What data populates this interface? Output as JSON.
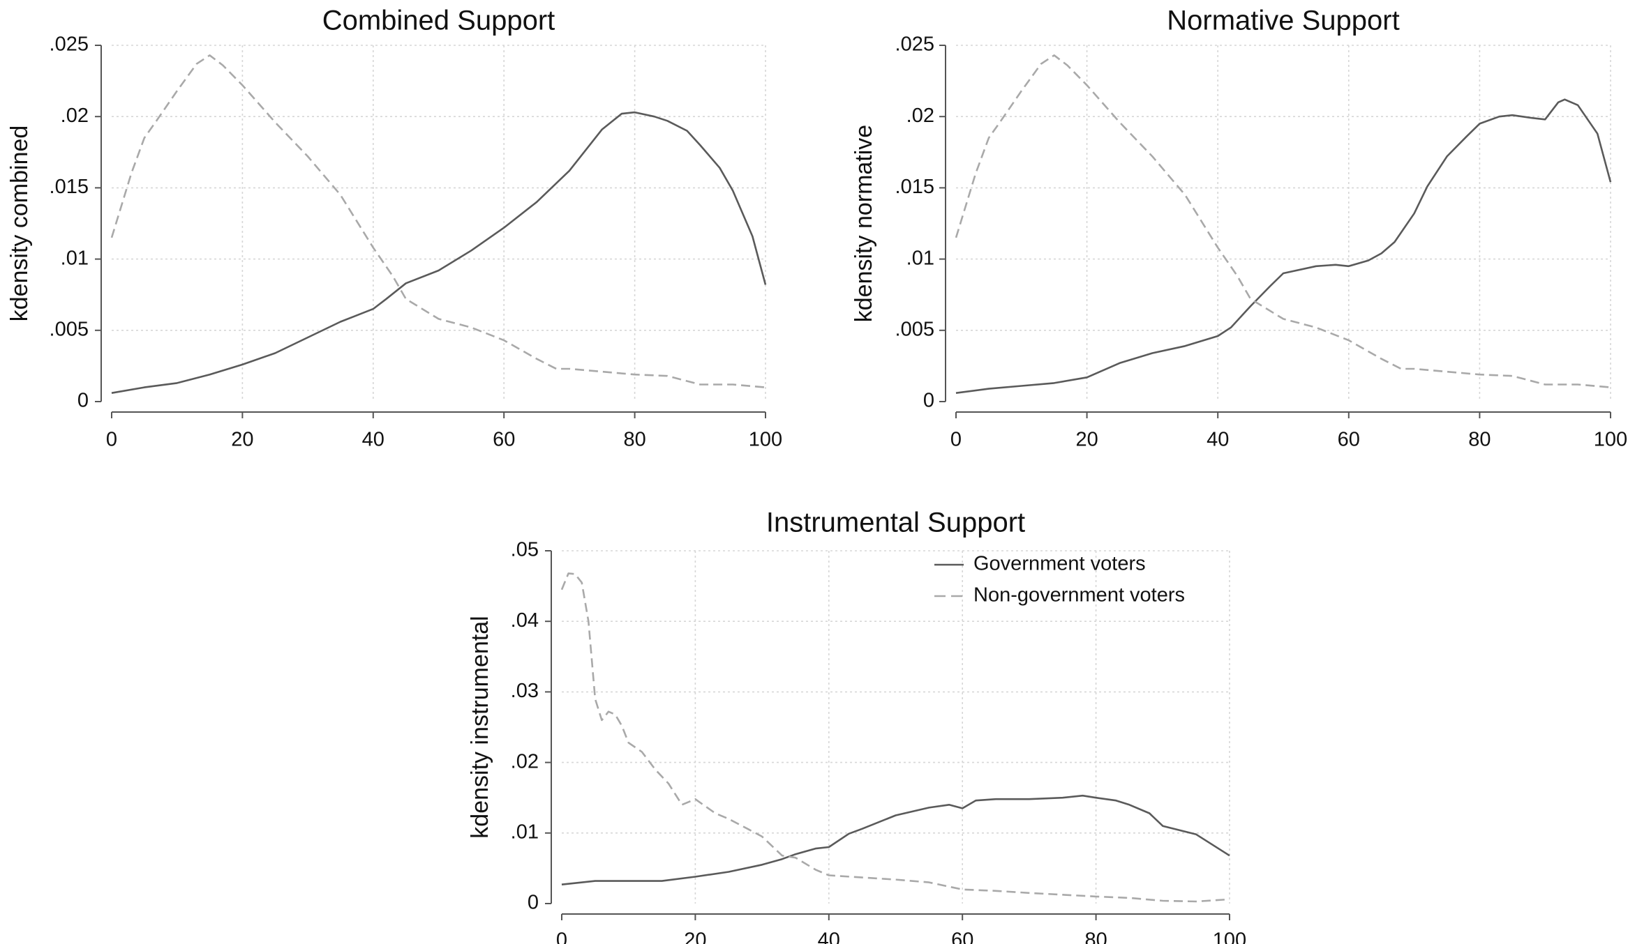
{
  "chart_data": [
    {
      "type": "line",
      "title": "Combined Support",
      "xlabel": "",
      "ylabel": "kdensity combined",
      "xlim": [
        0,
        100
      ],
      "ylim": [
        0,
        0.025
      ],
      "xticks": [
        0,
        20,
        40,
        60,
        80,
        100
      ],
      "xtick_labels": [
        "0",
        "20",
        "40",
        "60",
        "80",
        "100"
      ],
      "yticks": [
        0,
        0.005,
        0.01,
        0.015,
        0.02,
        0.025
      ],
      "ytick_labels": [
        "0",
        ".005",
        ".01",
        ".015",
        ".02",
        ".025"
      ],
      "grid": true,
      "series": [
        {
          "name": "Government voters",
          "style": "solid",
          "color": "#5a5a5a",
          "x": [
            0,
            5,
            10,
            15,
            20,
            25,
            30,
            35,
            40,
            42,
            45,
            50,
            55,
            60,
            65,
            70,
            75,
            78,
            80,
            83,
            85,
            88,
            90,
            93,
            95,
            98,
            100
          ],
          "y": [
            0.0006,
            0.001,
            0.0013,
            0.0019,
            0.0026,
            0.0034,
            0.0045,
            0.0056,
            0.0065,
            0.0072,
            0.0083,
            0.0092,
            0.0106,
            0.0122,
            0.014,
            0.0162,
            0.0191,
            0.0202,
            0.0203,
            0.02,
            0.0197,
            0.019,
            0.018,
            0.0164,
            0.0148,
            0.0116,
            0.0082
          ]
        },
        {
          "name": "Non-government voters",
          "style": "dashed",
          "color": "#a9a9a9",
          "x": [
            0,
            3,
            5,
            7,
            10,
            13,
            15,
            17,
            20,
            25,
            30,
            35,
            40,
            43,
            45,
            50,
            55,
            60,
            65,
            68,
            70,
            75,
            80,
            85,
            90,
            93,
            95,
            100
          ],
          "y": [
            0.0115,
            0.016,
            0.0185,
            0.0198,
            0.0218,
            0.0237,
            0.0243,
            0.0236,
            0.0222,
            0.0196,
            0.0172,
            0.0145,
            0.0108,
            0.0088,
            0.0072,
            0.0058,
            0.0052,
            0.0043,
            0.003,
            0.0023,
            0.0023,
            0.0021,
            0.0019,
            0.0018,
            0.0012,
            0.0012,
            0.0012,
            0.001
          ]
        }
      ]
    },
    {
      "type": "line",
      "title": "Normative Support",
      "xlabel": "",
      "ylabel": "kdensity normative",
      "xlim": [
        0,
        100
      ],
      "ylim": [
        0,
        0.025
      ],
      "xticks": [
        0,
        20,
        40,
        60,
        80,
        100
      ],
      "xtick_labels": [
        "0",
        "20",
        "40",
        "60",
        "80",
        "100"
      ],
      "yticks": [
        0,
        0.005,
        0.01,
        0.015,
        0.02,
        0.025
      ],
      "ytick_labels": [
        "0",
        ".005",
        ".01",
        ".015",
        ".02",
        ".025"
      ],
      "grid": true,
      "series": [
        {
          "name": "Government voters",
          "style": "solid",
          "color": "#5a5a5a",
          "x": [
            0,
            5,
            10,
            15,
            20,
            25,
            30,
            35,
            40,
            42,
            45,
            48,
            50,
            55,
            58,
            60,
            63,
            65,
            67,
            70,
            72,
            75,
            78,
            80,
            83,
            85,
            88,
            90,
            92,
            93,
            95,
            98,
            100
          ],
          "y": [
            0.0006,
            0.0009,
            0.0011,
            0.0013,
            0.0017,
            0.0027,
            0.0034,
            0.0039,
            0.0046,
            0.0052,
            0.0067,
            0.0081,
            0.009,
            0.0095,
            0.0096,
            0.0095,
            0.0099,
            0.0104,
            0.0112,
            0.0132,
            0.0151,
            0.0172,
            0.0186,
            0.0195,
            0.02,
            0.0201,
            0.0199,
            0.0198,
            0.021,
            0.0212,
            0.0208,
            0.0188,
            0.0154
          ]
        },
        {
          "name": "Non-government voters",
          "style": "dashed",
          "color": "#a9a9a9",
          "x": [
            0,
            3,
            5,
            7,
            10,
            13,
            15,
            17,
            20,
            25,
            30,
            35,
            40,
            43,
            45,
            50,
            55,
            60,
            65,
            68,
            70,
            75,
            80,
            85,
            90,
            93,
            95,
            100
          ],
          "y": [
            0.0115,
            0.016,
            0.0185,
            0.0198,
            0.0218,
            0.0237,
            0.0243,
            0.0236,
            0.0222,
            0.0196,
            0.0172,
            0.0145,
            0.0108,
            0.0088,
            0.0072,
            0.0058,
            0.0052,
            0.0043,
            0.003,
            0.0023,
            0.0023,
            0.0021,
            0.0019,
            0.0018,
            0.0012,
            0.0012,
            0.0012,
            0.001
          ]
        }
      ]
    },
    {
      "type": "line",
      "title": "Instrumental Support",
      "xlabel": "",
      "ylabel": "kdensity instrumental",
      "xlim": [
        0,
        100
      ],
      "ylim": [
        0,
        0.05
      ],
      "xticks": [
        0,
        20,
        40,
        60,
        80,
        100
      ],
      "xtick_labels": [
        "0",
        "20",
        "40",
        "60",
        "80",
        "100"
      ],
      "yticks": [
        0,
        0.01,
        0.02,
        0.03,
        0.04,
        0.05
      ],
      "ytick_labels": [
        "0",
        ".01",
        ".02",
        ".03",
        ".04",
        ".05"
      ],
      "grid": true,
      "legend": {
        "position": "top-right",
        "entries": [
          "Government voters",
          "Non-government voters"
        ]
      },
      "series": [
        {
          "name": "Government voters",
          "style": "solid",
          "color": "#5a5a5a",
          "x": [
            0,
            5,
            10,
            15,
            20,
            25,
            30,
            33,
            35,
            38,
            40,
            43,
            45,
            50,
            55,
            58,
            60,
            62,
            65,
            70,
            75,
            78,
            80,
            83,
            85,
            88,
            90,
            95,
            100
          ],
          "y": [
            0.0027,
            0.0032,
            0.0032,
            0.0032,
            0.0038,
            0.0045,
            0.0055,
            0.0063,
            0.007,
            0.0078,
            0.008,
            0.0099,
            0.0106,
            0.0125,
            0.0136,
            0.014,
            0.0135,
            0.0146,
            0.0148,
            0.0148,
            0.015,
            0.0153,
            0.015,
            0.0146,
            0.014,
            0.0128,
            0.011,
            0.0098,
            0.0068
          ]
        },
        {
          "name": "Non-government voters",
          "style": "dashed",
          "color": "#a9a9a9",
          "x": [
            0,
            1,
            2,
            3,
            4,
            5,
            6,
            7,
            8,
            9,
            10,
            12,
            14,
            16,
            18,
            20,
            23,
            25,
            28,
            30,
            33,
            35,
            38,
            40,
            45,
            50,
            55,
            60,
            65,
            70,
            80,
            85,
            90,
            95,
            100
          ],
          "y": [
            0.0445,
            0.0468,
            0.0467,
            0.0455,
            0.04,
            0.029,
            0.026,
            0.0272,
            0.0268,
            0.0252,
            0.0228,
            0.0215,
            0.019,
            0.017,
            0.014,
            0.0148,
            0.0128,
            0.012,
            0.0105,
            0.0095,
            0.0068,
            0.0065,
            0.0048,
            0.004,
            0.0037,
            0.0034,
            0.003,
            0.002,
            0.0018,
            0.0015,
            0.001,
            0.0008,
            0.0004,
            0.0003,
            0.0006
          ]
        }
      ]
    }
  ]
}
